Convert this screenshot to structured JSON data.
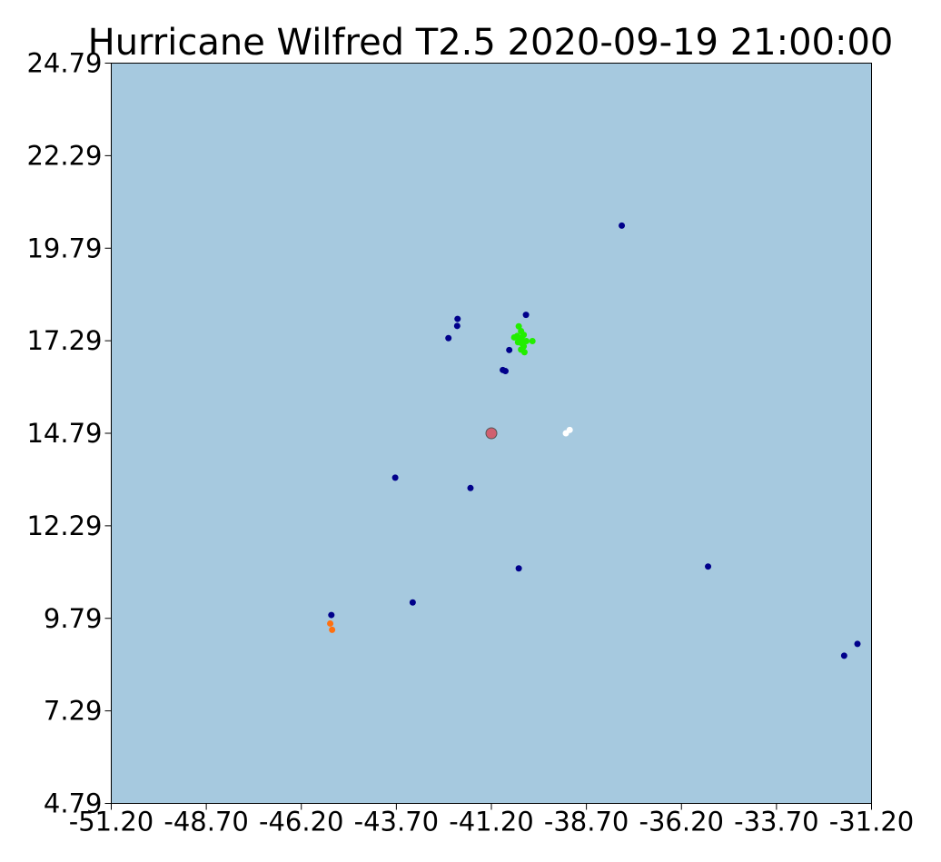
{
  "chart_data": {
    "type": "scatter",
    "title": "Hurricane Wilfred T2.5 2020-09-19 21:00:00",
    "xlabel": "",
    "ylabel": "",
    "xlim": [
      -51.2,
      -31.2
    ],
    "ylim": [
      4.79,
      24.79
    ],
    "x_ticks": [
      "-51.20",
      "-48.70",
      "-46.20",
      "-43.70",
      "-41.20",
      "-38.70",
      "-36.20",
      "-33.70",
      "-31.20"
    ],
    "y_ticks": [
      "4.79",
      "7.29",
      "9.79",
      "12.29",
      "14.79",
      "17.29",
      "19.79",
      "22.29",
      "24.79"
    ],
    "grid": false,
    "background_color": "#a6c9df",
    "series": [
      {
        "color": "#00008b",
        "points": [
          [
            -37.77,
            20.4
          ],
          [
            -40.29,
            17.99
          ],
          [
            -42.09,
            17.88
          ],
          [
            -42.1,
            17.69
          ],
          [
            -42.33,
            17.36
          ],
          [
            -40.73,
            17.04
          ],
          [
            -40.83,
            16.47
          ],
          [
            -40.9,
            16.5
          ],
          [
            -43.73,
            13.59
          ],
          [
            -41.75,
            13.31
          ],
          [
            -40.48,
            11.14
          ],
          [
            -35.5,
            11.19
          ],
          [
            -43.27,
            10.22
          ],
          [
            -45.41,
            9.88
          ],
          [
            -31.57,
            9.1
          ],
          [
            -31.92,
            8.78
          ]
        ]
      },
      {
        "color": "#22ee00",
        "points": [
          [
            -40.48,
            17.68
          ],
          [
            -40.42,
            17.55
          ],
          [
            -40.35,
            17.45
          ],
          [
            -40.52,
            17.42
          ],
          [
            -40.6,
            17.38
          ],
          [
            -40.45,
            17.36
          ],
          [
            -40.38,
            17.3
          ],
          [
            -40.28,
            17.28
          ],
          [
            -40.12,
            17.28
          ],
          [
            -40.5,
            17.25
          ],
          [
            -40.4,
            17.22
          ],
          [
            -40.35,
            17.14
          ],
          [
            -40.42,
            17.05
          ],
          [
            -40.33,
            16.98
          ]
        ]
      },
      {
        "color": "#ffffff",
        "points": [
          [
            -39.24,
            14.79
          ],
          [
            -39.14,
            14.88
          ]
        ]
      },
      {
        "color": "#ff7010",
        "points": [
          [
            -45.44,
            9.65
          ],
          [
            -45.39,
            9.48
          ]
        ]
      }
    ],
    "center_marker": {
      "x": -41.2,
      "y": 14.79,
      "fill": "#d06070",
      "stroke": "#555555"
    }
  }
}
